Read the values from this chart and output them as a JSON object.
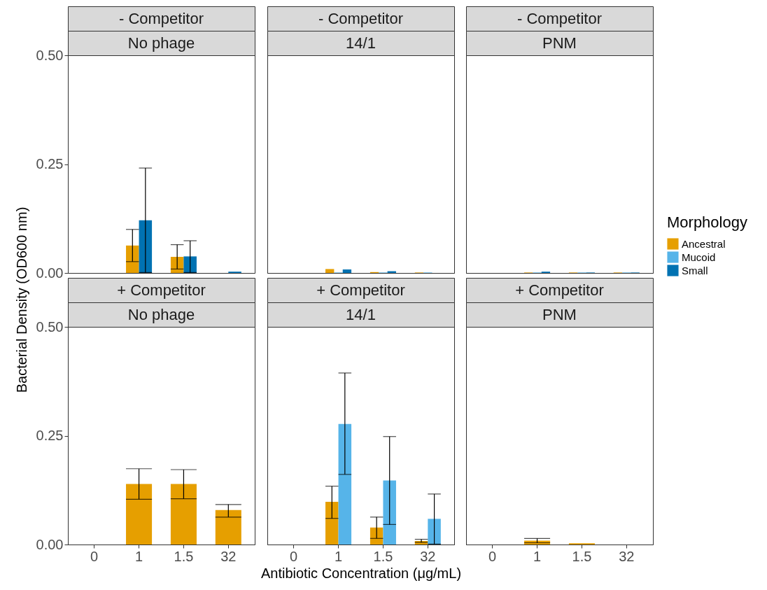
{
  "chart_data": [
    {
      "type": "bar",
      "title": "- Competitor",
      "subtitle": "No phage",
      "categories": [
        "0",
        "1",
        "1.5",
        "32"
      ],
      "ylim": [
        0,
        0.5
      ],
      "yticks": [
        {
          "value": 0,
          "label": "0.00"
        },
        {
          "value": 0.25,
          "label": "0.25"
        },
        {
          "value": 0.5,
          "label": "0.50"
        }
      ],
      "tick_labels": "y",
      "series": [
        {
          "color": "#e69f00",
          "values": [
            null,
            0.063,
            0.037,
            null
          ],
          "errors": [
            null,
            [
              0.026,
              0.1
            ],
            [
              0.009,
              0.065
            ],
            null
          ]
        },
        {
          "color": "#0072b2",
          "values": [
            null,
            0.121,
            0.038,
            0.003
          ],
          "errors": [
            null,
            [
              0.001,
              0.241
            ],
            [
              0.001,
              0.074
            ],
            null
          ]
        }
      ]
    },
    {
      "type": "bar",
      "title": "- Competitor",
      "subtitle": "14/1",
      "categories": [
        "0",
        "1",
        "1.5",
        "32"
      ],
      "ylim": [
        0,
        0.5
      ],
      "tick_labels": false,
      "series": [
        {
          "color": "#e69f00",
          "values": [
            null,
            0.009,
            0.002,
            0.001
          ]
        },
        {
          "color": "#56b4e9",
          "values": [
            null,
            0.001,
            0.001,
            0.001
          ]
        },
        {
          "color": "#0072b2",
          "values": [
            null,
            0.008,
            0.004,
            null
          ]
        }
      ]
    },
    {
      "type": "bar",
      "title": "- Competitor",
      "subtitle": "PNM",
      "categories": [
        "0",
        "1",
        "1.5",
        "32"
      ],
      "ylim": [
        0,
        0.5
      ],
      "tick_labels": false,
      "legend": "right",
      "legend_title": "Morphology",
      "series": [
        {
          "name": "Ancestral",
          "color": "#e69f00",
          "values": [
            null,
            0.001,
            0.001,
            0.001
          ]
        },
        {
          "name": "Mucoid",
          "color": "#56b4e9",
          "values": [
            null,
            0.001,
            0.001,
            0.001
          ]
        },
        {
          "name": "Small",
          "color": "#0072b2",
          "values": [
            null,
            0.003,
            0.001,
            0.001
          ]
        }
      ]
    },
    {
      "type": "bar",
      "title": "+ Competitor",
      "subtitle": "No phage",
      "categories": [
        "0",
        "1",
        "1.5",
        "32"
      ],
      "ylim": [
        0,
        0.5
      ],
      "yticks": [
        {
          "value": 0,
          "label": "0.00"
        },
        {
          "value": 0.25,
          "label": "0.25"
        },
        {
          "value": 0.5,
          "label": "0.50"
        }
      ],
      "ylabel": "Bacterial Density (OD600 nm)",
      "series": [
        {
          "color": "#e69f00",
          "values": [
            null,
            0.139,
            0.139,
            0.079
          ],
          "errors": [
            null,
            [
              0.104,
              0.174
            ],
            [
              0.105,
              0.172
            ],
            [
              0.063,
              0.092
            ]
          ]
        }
      ]
    },
    {
      "type": "bar",
      "title": "+ Competitor",
      "subtitle": "14/1",
      "categories": [
        "0",
        "1",
        "1.5",
        "32"
      ],
      "ylim": [
        0,
        0.5
      ],
      "tick_labels": "x",
      "xlabel": "Antibiotic Concentration (μg/mL)",
      "series": [
        {
          "color": "#e69f00",
          "values": [
            null,
            0.098,
            0.039,
            0.008
          ],
          "errors": [
            null,
            [
              0.06,
              0.134
            ],
            [
              0.014,
              0.063
            ],
            [
              0.005,
              0.012
            ]
          ]
        },
        {
          "color": "#56b4e9",
          "values": [
            null,
            0.277,
            0.147,
            0.059
          ],
          "errors": [
            null,
            [
              0.161,
              0.394
            ],
            [
              0.046,
              0.248
            ],
            [
              0.001,
              0.116
            ]
          ]
        }
      ]
    },
    {
      "type": "bar",
      "title": "+ Competitor",
      "subtitle": "PNM",
      "categories": [
        "0",
        "1",
        "1.5",
        "32"
      ],
      "ylim": [
        0,
        0.5
      ],
      "tick_labels": "x",
      "series": [
        {
          "color": "#e69f00",
          "values": [
            null,
            0.009,
            0.003,
            null
          ],
          "errors": [
            null,
            [
              0.004,
              0.014
            ],
            null,
            null
          ]
        }
      ]
    }
  ]
}
